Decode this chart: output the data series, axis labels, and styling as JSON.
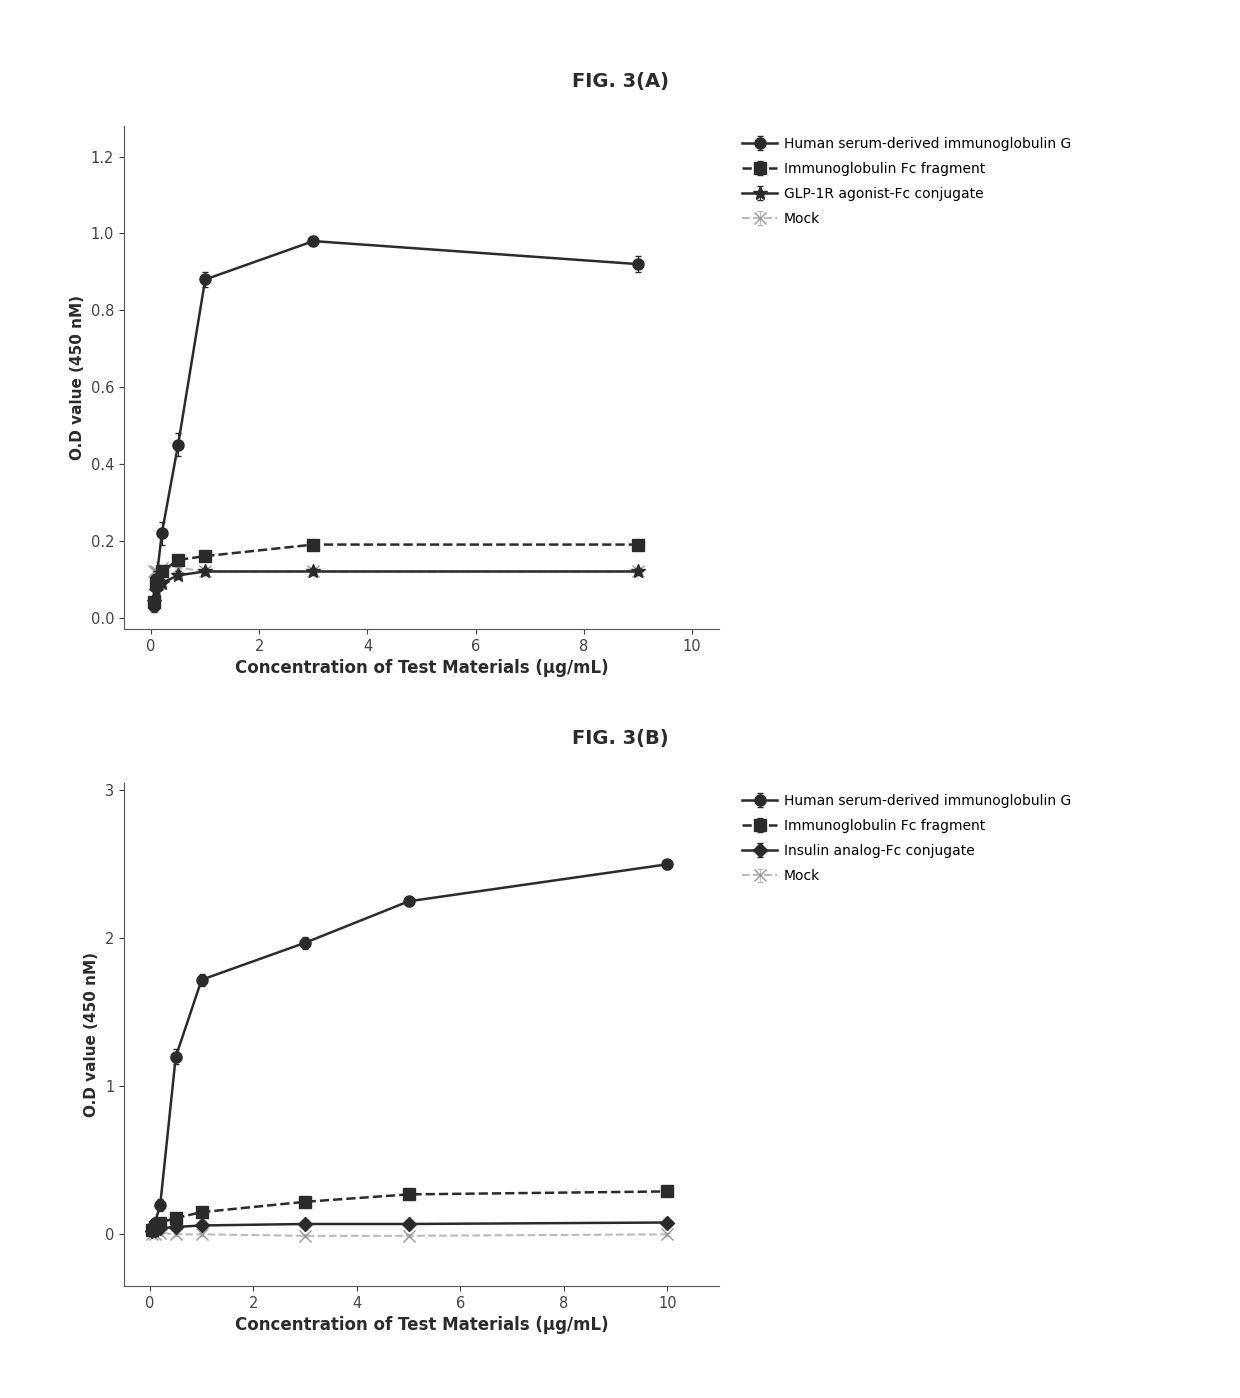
{
  "figA": {
    "title": "FIG. 3(A)",
    "xlabel": "Concentration of Test Materials (μg/mL)",
    "ylabel": "O.D value (450 nM)",
    "xlim": [
      -0.5,
      10.5
    ],
    "ylim": [
      -0.03,
      1.28
    ],
    "xticks": [
      0,
      2,
      4,
      6,
      8,
      10
    ],
    "yticks": [
      0.0,
      0.2,
      0.4,
      0.6,
      0.8,
      1.0,
      1.2
    ],
    "series": [
      {
        "label": "Human serum-derived immunoglobulin G",
        "x": [
          0.05,
          0.1,
          0.2,
          0.5,
          1.0,
          3.0,
          9.0
        ],
        "y": [
          0.03,
          0.1,
          0.22,
          0.45,
          0.88,
          0.98,
          0.92
        ],
        "yerr": [
          0.015,
          0.02,
          0.03,
          0.03,
          0.02,
          0.01,
          0.02
        ],
        "color": "#2b2b2b",
        "marker": "o",
        "markersize": 8,
        "linestyle": "-",
        "linewidth": 1.8,
        "fillstyle": "full"
      },
      {
        "label": "Immunoglobulin Fc fragment",
        "x": [
          0.05,
          0.1,
          0.2,
          0.5,
          1.0,
          3.0,
          9.0
        ],
        "y": [
          0.04,
          0.09,
          0.12,
          0.15,
          0.16,
          0.19,
          0.19
        ],
        "yerr": [
          0.01,
          0.01,
          0.01,
          0.01,
          0.01,
          0.01,
          0.01
        ],
        "color": "#2b2b2b",
        "marker": "s",
        "markersize": 8,
        "linestyle": "--",
        "linewidth": 1.8,
        "fillstyle": "full"
      },
      {
        "label": "GLP-1R agonist-Fc conjugate",
        "x": [
          0.05,
          0.1,
          0.2,
          0.5,
          1.0,
          3.0,
          9.0
        ],
        "y": [
          0.04,
          0.07,
          0.09,
          0.11,
          0.12,
          0.12,
          0.12
        ],
        "yerr": [
          0.01,
          0.01,
          0.01,
          0.01,
          0.01,
          0.01,
          0.01
        ],
        "color": "#2b2b2b",
        "marker": "*",
        "markersize": 10,
        "linestyle": "-",
        "linewidth": 1.8,
        "fillstyle": "full",
        "style": "star"
      },
      {
        "label": "Mock",
        "x": [
          0.05,
          0.1,
          0.2,
          0.5,
          1.0,
          3.0,
          9.0
        ],
        "y": [
          0.12,
          0.12,
          0.13,
          0.13,
          0.12,
          0.12,
          0.12
        ],
        "yerr": [
          0.008,
          0.008,
          0.008,
          0.008,
          0.008,
          0.008,
          0.008
        ],
        "color": "#aaaaaa",
        "marker": "x",
        "markersize": 8,
        "linestyle": "--",
        "linewidth": 1.5,
        "fillstyle": "none",
        "style": "mock"
      }
    ]
  },
  "figB": {
    "title": "FIG. 3(B)",
    "xlabel": "Concentration of Test Materials (μg/mL)",
    "ylabel": "O.D value (450 nM)",
    "xlim": [
      -0.5,
      11.0
    ],
    "ylim": [
      -0.35,
      3.05
    ],
    "xticks": [
      0,
      2,
      4,
      6,
      8,
      10
    ],
    "yticks": [
      0,
      1,
      2,
      3
    ],
    "series": [
      {
        "label": "Human serum-derived immunoglobulin G",
        "x": [
          0.05,
          0.1,
          0.2,
          0.5,
          1.0,
          3.0,
          5.0,
          10.0
        ],
        "y": [
          0.04,
          0.08,
          0.2,
          1.2,
          1.72,
          1.97,
          2.25,
          2.5
        ],
        "yerr": [
          0.01,
          0.02,
          0.04,
          0.05,
          0.04,
          0.04,
          0.03,
          0.03
        ],
        "color": "#2b2b2b",
        "marker": "o",
        "markersize": 8,
        "linestyle": "-",
        "linewidth": 1.8,
        "fillstyle": "full"
      },
      {
        "label": "Immunoglobulin Fc fragment",
        "x": [
          0.05,
          0.1,
          0.2,
          0.5,
          1.0,
          3.0,
          5.0,
          10.0
        ],
        "y": [
          0.03,
          0.05,
          0.08,
          0.11,
          0.15,
          0.22,
          0.27,
          0.29
        ],
        "yerr": [
          0.01,
          0.01,
          0.01,
          0.01,
          0.01,
          0.02,
          0.01,
          0.01
        ],
        "color": "#2b2b2b",
        "marker": "s",
        "markersize": 8,
        "linestyle": "--",
        "linewidth": 1.8,
        "fillstyle": "full"
      },
      {
        "label": "Insulin analog-Fc conjugate",
        "x": [
          0.05,
          0.1,
          0.2,
          0.5,
          1.0,
          3.0,
          5.0,
          10.0
        ],
        "y": [
          0.02,
          0.03,
          0.04,
          0.05,
          0.06,
          0.07,
          0.07,
          0.08
        ],
        "yerr": [
          0.01,
          0.01,
          0.01,
          0.01,
          0.01,
          0.01,
          0.01,
          0.01
        ],
        "color": "#2b2b2b",
        "marker": "D",
        "markersize": 7,
        "linestyle": "-",
        "linewidth": 1.8,
        "fillstyle": "full"
      },
      {
        "label": "Mock",
        "x": [
          0.05,
          0.1,
          0.2,
          0.5,
          1.0,
          3.0,
          5.0,
          10.0
        ],
        "y": [
          0.0,
          0.0,
          0.01,
          0.0,
          0.0,
          -0.01,
          -0.01,
          0.0
        ],
        "yerr": [
          0.01,
          0.01,
          0.01,
          0.01,
          0.01,
          0.01,
          0.01,
          0.01
        ],
        "color": "#aaaaaa",
        "marker": "x",
        "markersize": 8,
        "linestyle": "--",
        "linewidth": 1.5,
        "fillstyle": "none",
        "style": "mock"
      }
    ]
  },
  "background_color": "#ffffff",
  "text_color": "#2b2b2b"
}
